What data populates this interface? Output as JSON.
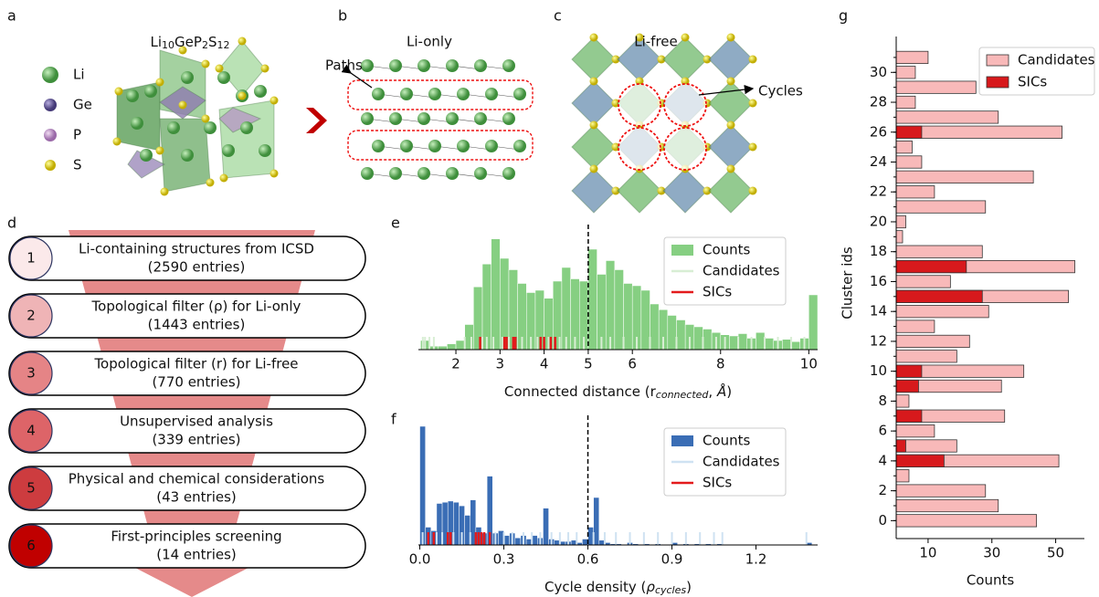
{
  "structures": {
    "a": {
      "label": "a",
      "formula": [
        "Li",
        "10",
        "GeP",
        "2",
        "S",
        "12"
      ],
      "elements": [
        "Li",
        "Ge",
        "P",
        "S"
      ]
    },
    "b": {
      "label": "b",
      "title": "Li-only",
      "annotation": "Paths"
    },
    "c": {
      "label": "c",
      "title": "Li-free",
      "annotation": "Cycles"
    }
  },
  "pipeline": {
    "label": "d",
    "steps": [
      {
        "number": "1",
        "title": "Li-containing structures from ICSD",
        "count": "(2590 entries)"
      },
      {
        "number": "2",
        "title": "Topological filter (ρ) for Li-only",
        "count": "(1443 entries)"
      },
      {
        "number": "3",
        "title": "Topological filter (r) for Li-free",
        "count": "(770 entries)"
      },
      {
        "number": "4",
        "title": "Unsupervised analysis",
        "count": "(339 entries)"
      },
      {
        "number": "5",
        "title": "Physical and chemical considerations",
        "count": "(43 entries)"
      },
      {
        "number": "6",
        "title": "First-principles screening",
        "count": "(14 entries)"
      }
    ]
  },
  "chart_data": [
    {
      "type": "histogram",
      "panel_label": "e",
      "xlabel": [
        {
          "text": "Connected distance (r"
        },
        {
          "text": "connected",
          "sub": true,
          "italic": true
        },
        {
          "text": ", "
        },
        {
          "text": "Å",
          "italic": true
        },
        {
          "text": ")"
        }
      ],
      "bins": [
        1.2,
        1.4,
        1.6,
        1.8,
        2,
        2.2,
        2.4,
        2.6,
        2.8,
        3,
        3.2,
        3.4,
        3.6,
        3.8,
        4,
        4.2,
        4.4,
        4.6,
        4.8,
        5,
        5.2,
        5.4,
        5.6,
        5.8,
        6,
        6.2,
        6.4,
        6.6,
        6.8,
        7,
        7.2,
        7.4,
        7.6,
        7.8,
        8,
        8.2,
        8.4,
        8.6,
        8.8,
        9,
        9.2,
        9.4,
        9.6,
        9.8,
        10,
        10.2
      ],
      "series": [
        {
          "name": "Counts",
          "color": "#86cf82",
          "values": [
            8,
            3,
            3,
            5,
            8,
            22,
            55,
            75,
            97,
            80,
            70,
            58,
            50,
            52,
            45,
            60,
            72,
            62,
            60,
            88,
            66,
            78,
            70,
            58,
            56,
            52,
            40,
            35,
            30,
            26,
            22,
            20,
            18,
            15,
            13,
            12,
            14,
            10,
            15,
            10,
            8,
            9,
            7,
            10,
            48
          ]
        },
        {
          "name": "Candidates",
          "color": "#d8eed4",
          "x": [
            1.25,
            1.3,
            1.4,
            1.5,
            2.2,
            2.35,
            2.6,
            2.7,
            2.85,
            3.05,
            3.2,
            3.5,
            3.7,
            3.85,
            4.1,
            4.35,
            4.5,
            4.7,
            4.9,
            5.3,
            5.5,
            5.8,
            6.1,
            6.4,
            6.7,
            7.0,
            7.3,
            7.6,
            7.9,
            8.1,
            8.4,
            8.7,
            9.0,
            9.3,
            9.6,
            9.9
          ]
        },
        {
          "name": "SICs",
          "color": "#e31a1c",
          "x": [
            2.55,
            3.1,
            3.15,
            3.3,
            3.35,
            3.92,
            4.0,
            4.15,
            4.25
          ]
        }
      ],
      "threshold": 5,
      "xlim": [
        1.15,
        10.2
      ],
      "ylim": [
        0,
        100
      ],
      "xticks": [
        2,
        3,
        4,
        5,
        6,
        8,
        10
      ],
      "legend": "upper right"
    },
    {
      "type": "histogram",
      "panel_label": "f",
      "xlabel": [
        {
          "text": "Cycle density ("
        },
        {
          "text": "ρ",
          "italic": true
        },
        {
          "text": "cycles",
          "sub": true,
          "italic": true
        },
        {
          "text": ")"
        }
      ],
      "bins": [
        0,
        0.02,
        0.04,
        0.06,
        0.08,
        0.1,
        0.12,
        0.14,
        0.16,
        0.18,
        0.2,
        0.22,
        0.24,
        0.26,
        0.28,
        0.3,
        0.32,
        0.34,
        0.36,
        0.38,
        0.4,
        0.42,
        0.44,
        0.46,
        0.48,
        0.5,
        0.52,
        0.54,
        0.56,
        0.58,
        0.6,
        0.62,
        0.64,
        0.66,
        0.68,
        0.7,
        0.72,
        0.74,
        0.76,
        0.78,
        0.8,
        0.82,
        0.84,
        0.86,
        0.88,
        0.9,
        0.92,
        0.94,
        0.96,
        0.98,
        1,
        1.02,
        1.04,
        1.06,
        1.08,
        1.1,
        1.12,
        1.14,
        1.16,
        1.18,
        1.2,
        1.22,
        1.24,
        1.26,
        1.28,
        1.3,
        1.32,
        1.34,
        1.36,
        1.38,
        1.4
      ],
      "series": [
        {
          "name": "Counts",
          "color": "#3a6db5",
          "values": [
            100,
            15,
            12,
            35,
            36,
            37,
            36,
            33,
            25,
            38,
            15,
            10,
            58,
            10,
            12,
            8,
            10,
            6,
            8,
            5,
            8,
            6,
            31,
            5,
            4,
            3,
            3,
            4,
            2,
            5,
            15,
            40,
            4,
            2,
            1,
            1,
            0,
            2,
            1,
            0,
            1,
            0,
            1,
            0,
            0,
            2,
            0,
            1,
            0,
            1,
            0,
            1,
            0,
            1,
            0,
            0,
            0,
            0,
            0,
            0,
            0,
            0,
            0,
            0,
            0,
            0,
            0,
            0,
            0,
            2
          ]
        },
        {
          "name": "Candidates",
          "color": "#cfe2f2",
          "x": [
            0.01,
            0.03,
            0.06,
            0.08,
            0.12,
            0.15,
            0.18,
            0.27,
            0.3,
            0.33,
            0.37,
            0.4,
            0.43,
            0.47,
            0.5,
            0.53,
            0.56,
            0.62,
            0.66,
            0.7,
            0.75,
            0.8,
            0.85,
            0.9,
            0.95,
            1.0,
            1.05,
            1.08,
            1.38
          ]
        },
        {
          "name": "SICs",
          "color": "#e31a1c",
          "x": [
            0.03,
            0.05,
            0.1,
            0.11,
            0.2,
            0.21,
            0.22,
            0.23,
            0.25
          ]
        }
      ],
      "threshold": 0.6,
      "xlim": [
        -0.005,
        1.42
      ],
      "ylim": [
        0,
        100
      ],
      "xticks": [
        {
          "value": 0,
          "label": "0.0"
        },
        0.3,
        0.6,
        0.9,
        1.2
      ],
      "legend": "upper right"
    },
    {
      "type": "barh",
      "panel_label": "g",
      "xlabel": "Counts",
      "ylabel": "Cluster ids",
      "y": [
        0,
        1,
        2,
        3,
        4,
        5,
        6,
        7,
        8,
        9,
        10,
        11,
        12,
        13,
        14,
        15,
        16,
        17,
        18,
        19,
        20,
        21,
        22,
        23,
        24,
        25,
        26,
        27,
        28,
        29,
        30,
        31
      ],
      "series": [
        {
          "name": "Candidates",
          "color": "#f8b9b9",
          "values": [
            44,
            32,
            28,
            4,
            51,
            19,
            12,
            34,
            4,
            33,
            40,
            19,
            23,
            12,
            29,
            54,
            17,
            56,
            27,
            2,
            3,
            28,
            12,
            43,
            8,
            5,
            52,
            32,
            6,
            25,
            6,
            10
          ]
        },
        {
          "name": "SICs",
          "color": "#d7191c",
          "values": [
            0,
            0,
            0,
            0,
            15,
            3,
            0,
            8,
            0,
            7,
            8,
            0,
            0,
            0,
            0,
            27,
            0,
            22,
            0,
            0,
            0,
            0,
            0,
            0,
            0,
            0,
            8,
            0,
            0,
            0,
            0,
            0
          ]
        }
      ],
      "xlim": [
        0,
        59
      ],
      "ylim": [
        -1.2,
        32.4
      ],
      "xticks": [
        10,
        30,
        50
      ],
      "yticks": [
        0,
        2,
        4,
        6,
        8,
        10,
        12,
        14,
        16,
        18,
        20,
        22,
        24,
        26,
        28,
        30
      ],
      "legend": "upper right"
    }
  ]
}
